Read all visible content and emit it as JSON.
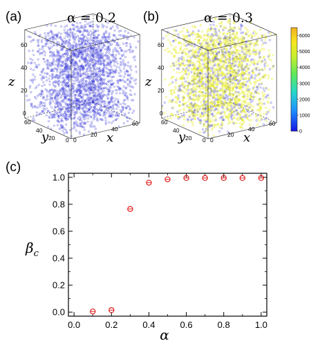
{
  "panels_3d": [
    {
      "label": "(a)",
      "title": "α = 0.2",
      "axes": {
        "x": "x",
        "y": "y",
        "z": "z"
      },
      "x_ticks": [
        "0",
        "20",
        "40",
        "60"
      ],
      "y_ticks": [
        "0",
        "20",
        "40",
        "60"
      ],
      "z_ticks": [
        "0",
        "20",
        "40",
        "60"
      ],
      "point_color": "#3a3ad8",
      "yellow_fraction": 0.0
    },
    {
      "label": "(b)",
      "title": "α = 0.3",
      "axes": {
        "x": "x",
        "y": "y",
        "z": "z"
      },
      "x_ticks": [
        "0",
        "20",
        "40",
        "60"
      ],
      "y_ticks": [
        "0",
        "20",
        "40",
        "60"
      ],
      "z_ticks": [
        "0",
        "20",
        "40",
        "60"
      ],
      "point_color": "#3a3ad8",
      "highlight_color": "#e8ec2a",
      "yellow_fraction": 0.72
    }
  ],
  "colorbar": {
    "ticks": [
      "0",
      "1000",
      "2000",
      "3000",
      "4000",
      "5000",
      "6000"
    ],
    "range": [
      0,
      6500
    ],
    "colors": [
      "#1515e6",
      "#1e90ff",
      "#27d8c8",
      "#5de85a",
      "#c8ee2c",
      "#f6e61e",
      "#f0b020"
    ]
  },
  "chart_data": {
    "type": "scatter",
    "label": "(c)",
    "xlabel": "α",
    "ylabel_base": "β",
    "ylabel_sub": "c",
    "x_ticks": [
      "0.0",
      "0.2",
      "0.4",
      "0.6",
      "0.8",
      "1.0"
    ],
    "y_ticks": [
      "0.0",
      "0.2",
      "0.4",
      "0.6",
      "0.8",
      "1.0"
    ],
    "xlim": [
      -0.03,
      1.03
    ],
    "ylim": [
      -0.03,
      1.03
    ],
    "marker_color": "#e01e1e",
    "x": [
      0.1,
      0.2,
      0.3,
      0.4,
      0.5,
      0.6,
      0.7,
      0.8,
      0.9,
      1.0
    ],
    "y": [
      0.005,
      0.015,
      0.765,
      0.96,
      0.985,
      0.995,
      0.995,
      0.995,
      0.995,
      0.995
    ]
  }
}
